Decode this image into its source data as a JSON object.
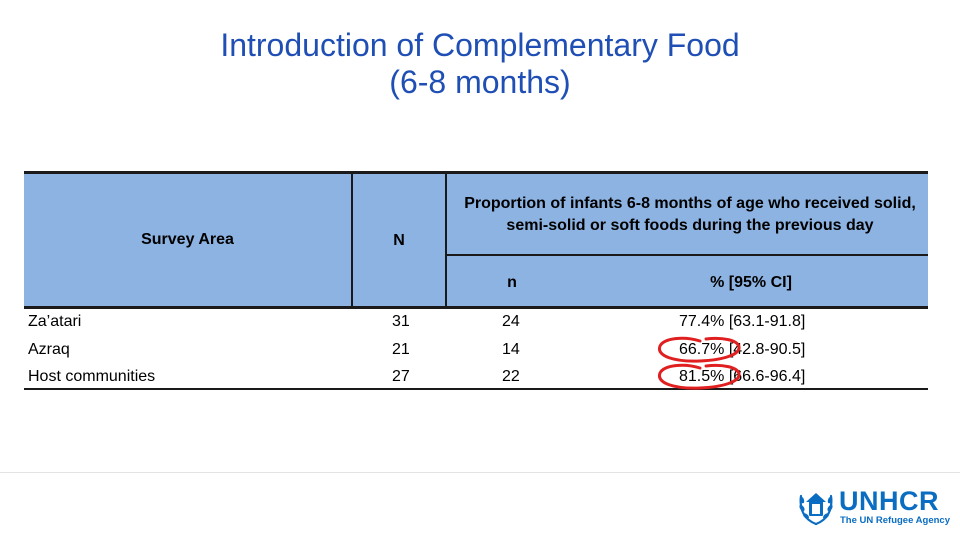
{
  "title": {
    "line1": "Introduction of Complementary Food",
    "line2": "(6-8 months)"
  },
  "table": {
    "headers": {
      "survey_area": "Survey Area",
      "n_total": "N",
      "proportion": "Proportion of infants 6-8 months of age who received solid, semi-solid or soft foods during the previous day",
      "n_sub": "n",
      "percent_ci": "% [95% CI]"
    },
    "rows": [
      {
        "area": "Za’atari",
        "N": "31",
        "n": "24",
        "pct": "77.4% [63.1-91.8]"
      },
      {
        "area": "Azraq",
        "N": "21",
        "n": "14",
        "pct": "66.7% [42.8-90.5]"
      },
      {
        "area": "Host communities",
        "N": "27",
        "n": "22",
        "pct": "81.5% [66.6-96.4]"
      }
    ]
  },
  "annotation_color": "#e02020",
  "header_color": "#8db3e2",
  "logo": {
    "name": "UNHCR",
    "tagline": "The UN Refugee Agency",
    "color": "#0a6dc2",
    "icon": "unhcr-emblem-icon"
  }
}
